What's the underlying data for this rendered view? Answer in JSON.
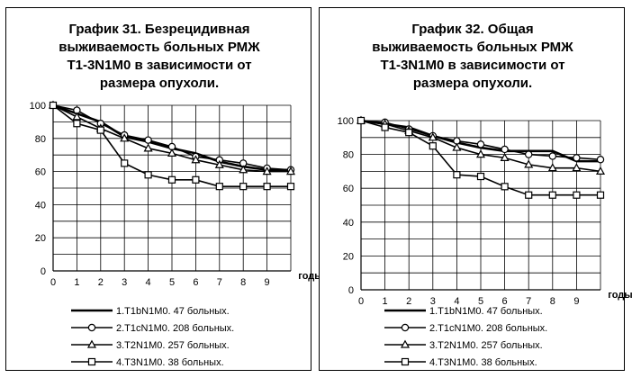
{
  "chart_data": [
    {
      "type": "line",
      "title": "График 31. Безрецидивная\nвыживаемость больных РМЖ\nT1-3N1M0 в зависимости от\nразмера опухоли.",
      "xlabel": "годы",
      "ylabel": "",
      "xlim": [
        0,
        10
      ],
      "ylim": [
        0,
        100
      ],
      "x_ticks": [
        "0",
        "1",
        "2",
        "3",
        "4",
        "5",
        "6",
        "7",
        "8",
        "9"
      ],
      "y_ticks": [
        "0",
        "20",
        "40",
        "60",
        "80",
        "100"
      ],
      "grid": true,
      "legend_position": "bottom",
      "series": [
        {
          "name": "1.T1bN1M0. 47 больных.",
          "marker": "none",
          "x": [
            0,
            1,
            2,
            3,
            4,
            5,
            6,
            7,
            8,
            9,
            10
          ],
          "y": [
            100,
            95,
            90,
            81,
            78,
            74,
            71,
            66,
            63,
            61,
            61
          ]
        },
        {
          "name": "2.T1cN1M0. 208 больных.",
          "marker": "circle",
          "x": [
            0,
            1,
            2,
            3,
            4,
            5,
            6,
            7,
            8,
            9,
            10
          ],
          "y": [
            100,
            97,
            89,
            82,
            79,
            75,
            69,
            67,
            65,
            62,
            61
          ]
        },
        {
          "name": "3.T2N1M0. 257 больных.",
          "marker": "triangle",
          "x": [
            0,
            1,
            2,
            3,
            4,
            5,
            6,
            7,
            8,
            9,
            10
          ],
          "y": [
            100,
            93,
            86,
            80,
            74,
            71,
            67,
            64,
            61,
            60,
            60
          ]
        },
        {
          "name": "4.T3N1M0. 38 больных.",
          "marker": "square",
          "x": [
            0,
            1,
            2,
            3,
            4,
            5,
            6,
            7,
            8,
            9,
            10
          ],
          "y": [
            100,
            89,
            85,
            65,
            58,
            55,
            55,
            51,
            51,
            51,
            51
          ]
        }
      ]
    },
    {
      "type": "line",
      "title": "График 32. Общая\nвыживаемость больных РМЖ\nT1-3N1M0 в зависимости от\nразмера опухоли.",
      "xlabel": "годы",
      "ylabel": "",
      "xlim": [
        0,
        10
      ],
      "ylim": [
        0,
        100
      ],
      "x_ticks": [
        "0",
        "1",
        "2",
        "3",
        "4",
        "5",
        "6",
        "7",
        "8",
        "9"
      ],
      "y_ticks": [
        "0",
        "20",
        "40",
        "60",
        "80",
        "100"
      ],
      "grid": true,
      "legend_position": "bottom",
      "series": [
        {
          "name": "1.T1bN1M0. 47 больных.",
          "marker": "none",
          "x": [
            0,
            1,
            2,
            3,
            4,
            5,
            6,
            7,
            8,
            9,
            10
          ],
          "y": [
            100,
            98,
            96,
            91,
            87,
            84,
            82,
            82,
            82,
            76,
            76
          ]
        },
        {
          "name": "2.T1cN1M0. 208 больных.",
          "marker": "circle",
          "x": [
            0,
            1,
            2,
            3,
            4,
            5,
            6,
            7,
            8,
            9,
            10
          ],
          "y": [
            100,
            99,
            95,
            91,
            88,
            86,
            83,
            80,
            79,
            78,
            77
          ]
        },
        {
          "name": "3.T2N1M0. 257 больных.",
          "marker": "triangle",
          "x": [
            0,
            1,
            2,
            3,
            4,
            5,
            6,
            7,
            8,
            9,
            10
          ],
          "y": [
            100,
            98,
            94,
            90,
            84,
            80,
            78,
            74,
            72,
            72,
            70
          ]
        },
        {
          "name": "4.T3N1M0. 38 больных.",
          "marker": "square",
          "x": [
            0,
            1,
            2,
            3,
            4,
            5,
            6,
            7,
            8,
            9,
            10
          ],
          "y": [
            100,
            96,
            93,
            85,
            68,
            67,
            61,
            56,
            56,
            56,
            56
          ]
        }
      ]
    }
  ]
}
